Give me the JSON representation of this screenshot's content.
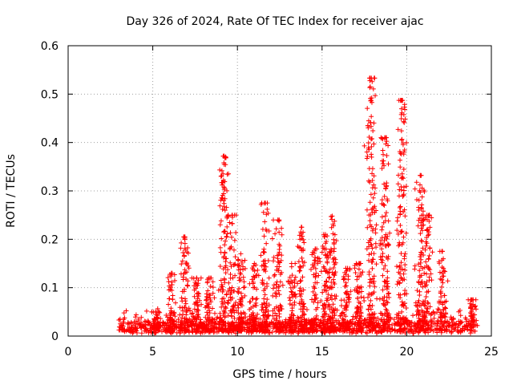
{
  "chart_data": {
    "type": "scatter",
    "title": "Day 326 of 2024, Rate Of TEC Index for receiver ajac",
    "xlabel": "GPS time / hours",
    "ylabel": "ROTI / TECUs",
    "xlim": [
      0,
      25
    ],
    "ylim": [
      0,
      0.6
    ],
    "xticks": [
      "0",
      "5",
      "10",
      "15",
      "20",
      "25"
    ],
    "yticks": [
      "0",
      "0.1",
      "0.2",
      "0.3",
      "0.4",
      "0.5",
      "0.6"
    ],
    "grid": true,
    "marker": "+",
    "color": "#ff0000",
    "x_range_of_data": [
      3.0,
      24.0
    ],
    "baseline_level": 0.02,
    "bursts": [
      {
        "x": 5.2,
        "peak": 0.05
      },
      {
        "x": 6.1,
        "peak": 0.13
      },
      {
        "x": 6.9,
        "peak": 0.205
      },
      {
        "x": 7.6,
        "peak": 0.12
      },
      {
        "x": 8.3,
        "peak": 0.12
      },
      {
        "x": 9.2,
        "peak": 0.372
      },
      {
        "x": 9.7,
        "peak": 0.25
      },
      {
        "x": 10.2,
        "peak": 0.17
      },
      {
        "x": 11.0,
        "peak": 0.15
      },
      {
        "x": 11.6,
        "peak": 0.275
      },
      {
        "x": 12.4,
        "peak": 0.24
      },
      {
        "x": 13.2,
        "peak": 0.15
      },
      {
        "x": 13.8,
        "peak": 0.225
      },
      {
        "x": 14.6,
        "peak": 0.18
      },
      {
        "x": 15.2,
        "peak": 0.21
      },
      {
        "x": 15.6,
        "peak": 0.248
      },
      {
        "x": 16.4,
        "peak": 0.14
      },
      {
        "x": 17.2,
        "peak": 0.15
      },
      {
        "x": 17.9,
        "peak": 0.533
      },
      {
        "x": 18.7,
        "peak": 0.41
      },
      {
        "x": 19.7,
        "peak": 0.487
      },
      {
        "x": 20.8,
        "peak": 0.332
      },
      {
        "x": 21.2,
        "peak": 0.25
      },
      {
        "x": 22.1,
        "peak": 0.175
      },
      {
        "x": 23.9,
        "peak": 0.075
      }
    ],
    "notable_points": [
      {
        "x": 17.9,
        "y": 0.533
      },
      {
        "x": 17.9,
        "y": 0.487
      },
      {
        "x": 19.7,
        "y": 0.487
      },
      {
        "x": 17.9,
        "y": 0.433
      },
      {
        "x": 18.8,
        "y": 0.41
      },
      {
        "x": 19.7,
        "y": 0.405
      },
      {
        "x": 17.5,
        "y": 0.393
      },
      {
        "x": 9.2,
        "y": 0.372
      },
      {
        "x": 9.2,
        "y": 0.358
      },
      {
        "x": 20.8,
        "y": 0.332
      },
      {
        "x": 9.2,
        "y": 0.308
      }
    ]
  }
}
